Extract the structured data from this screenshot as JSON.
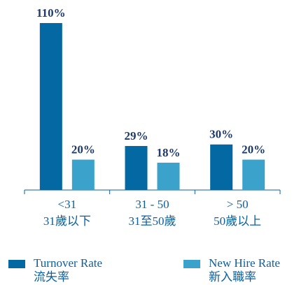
{
  "chart_data": {
    "type": "bar",
    "categories": [
      [
        "<31",
        "31歲以下"
      ],
      [
        "31 - 50",
        "31至50歲"
      ],
      [
        "> 50",
        "50歲以上"
      ]
    ],
    "series": [
      {
        "name": [
          "Turnover Rate",
          "流失率"
        ],
        "color": "#0468a3",
        "values": [
          110,
          29,
          30
        ],
        "value_labels": [
          "110%",
          "29%",
          "30%"
        ]
      },
      {
        "name": [
          "New Hire Rate",
          "新入職率"
        ],
        "color": "#3ba3cb",
        "values": [
          20,
          18,
          20
        ],
        "value_labels": [
          "20%",
          "18%",
          "20%"
        ]
      }
    ]
  }
}
